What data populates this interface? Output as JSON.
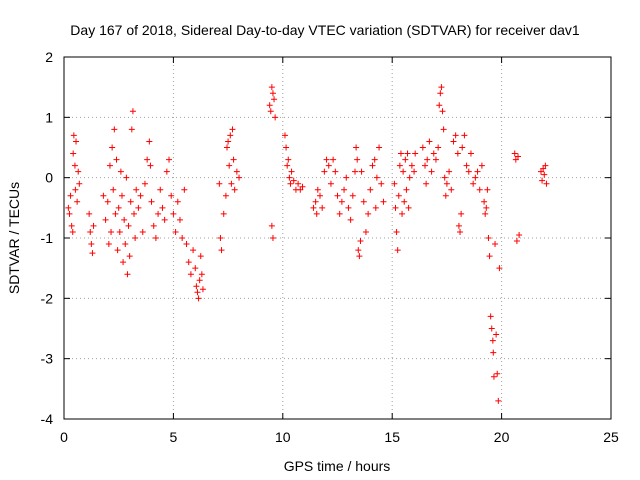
{
  "chart_data": {
    "type": "scatter",
    "title": "Day 167 of 2018, Sidereal Day-to-day VTEC variation (SDTVAR) for receiver dav1",
    "xlabel": "GPS time / hours",
    "ylabel": "SDTVAR / TECUs",
    "xlim": [
      0,
      25
    ],
    "ylim": [
      -4,
      2
    ],
    "xticks": [
      0,
      5,
      10,
      15,
      20,
      25
    ],
    "yticks": [
      -4,
      -3,
      -2,
      -1,
      0,
      1,
      2
    ],
    "grid": true,
    "marker": "plus",
    "color": "#ff0000",
    "series": [
      {
        "name": "SDTVAR",
        "points": [
          [
            0.2,
            -0.5
          ],
          [
            0.25,
            -0.6
          ],
          [
            0.3,
            -0.3
          ],
          [
            0.35,
            -0.8
          ],
          [
            0.4,
            -0.9
          ],
          [
            0.42,
            0.4
          ],
          [
            0.45,
            0.7
          ],
          [
            0.5,
            0.2
          ],
          [
            0.52,
            -0.2
          ],
          [
            0.55,
            0.6
          ],
          [
            0.6,
            -0.4
          ],
          [
            0.65,
            0.1
          ],
          [
            0.7,
            -0.1
          ],
          [
            1.15,
            -0.6
          ],
          [
            1.2,
            -0.9
          ],
          [
            1.25,
            -1.1
          ],
          [
            1.3,
            -1.25
          ],
          [
            1.35,
            -0.8
          ],
          [
            1.8,
            -0.3
          ],
          [
            1.9,
            -0.7
          ],
          [
            2.0,
            -0.4
          ],
          [
            2.05,
            -1.1
          ],
          [
            2.1,
            0.2
          ],
          [
            2.15,
            -0.9
          ],
          [
            2.2,
            0.5
          ],
          [
            2.25,
            -0.2
          ],
          [
            2.3,
            0.8
          ],
          [
            2.35,
            -0.6
          ],
          [
            2.4,
            0.3
          ],
          [
            2.45,
            -1.2
          ],
          [
            2.5,
            -0.5
          ],
          [
            2.55,
            -0.9
          ],
          [
            2.6,
            0.1
          ],
          [
            2.65,
            -0.3
          ],
          [
            2.7,
            -1.4
          ],
          [
            2.75,
            -0.7
          ],
          [
            2.8,
            -1.1
          ],
          [
            2.85,
            0.0
          ],
          [
            2.9,
            -1.6
          ],
          [
            2.95,
            -0.8
          ],
          [
            3.0,
            -1.3
          ],
          [
            3.05,
            -0.4
          ],
          [
            3.1,
            0.8
          ],
          [
            3.15,
            1.1
          ],
          [
            3.2,
            -0.6
          ],
          [
            3.25,
            -1.0
          ],
          [
            3.3,
            -0.2
          ],
          [
            3.4,
            -0.5
          ],
          [
            3.5,
            -0.3
          ],
          [
            3.6,
            -0.9
          ],
          [
            3.7,
            -0.1
          ],
          [
            3.8,
            0.3
          ],
          [
            3.9,
            0.6
          ],
          [
            3.95,
            0.2
          ],
          [
            4.0,
            -0.4
          ],
          [
            4.1,
            -0.8
          ],
          [
            4.2,
            -1.0
          ],
          [
            4.3,
            -0.6
          ],
          [
            4.4,
            -0.2
          ],
          [
            4.5,
            -0.5
          ],
          [
            4.6,
            -0.7
          ],
          [
            4.7,
            0.1
          ],
          [
            4.8,
            0.3
          ],
          [
            4.9,
            -0.3
          ],
          [
            5.0,
            -0.6
          ],
          [
            5.1,
            -0.9
          ],
          [
            5.2,
            -0.4
          ],
          [
            5.3,
            -0.7
          ],
          [
            5.4,
            -1.0
          ],
          [
            5.5,
            -0.2
          ],
          [
            5.6,
            -1.1
          ],
          [
            5.7,
            -1.4
          ],
          [
            5.8,
            -1.6
          ],
          [
            5.9,
            -1.2
          ],
          [
            6.0,
            -1.5
          ],
          [
            6.05,
            -1.8
          ],
          [
            6.1,
            -1.9
          ],
          [
            6.15,
            -2.0
          ],
          [
            6.2,
            -1.7
          ],
          [
            6.25,
            -1.3
          ],
          [
            6.3,
            -1.6
          ],
          [
            6.35,
            -1.85
          ],
          [
            7.1,
            -0.1
          ],
          [
            7.15,
            -1.0
          ],
          [
            7.2,
            -1.2
          ],
          [
            7.3,
            -0.6
          ],
          [
            7.4,
            -0.3
          ],
          [
            7.45,
            0.5
          ],
          [
            7.5,
            0.6
          ],
          [
            7.55,
            0.2
          ],
          [
            7.6,
            0.7
          ],
          [
            7.65,
            -0.1
          ],
          [
            7.7,
            0.8
          ],
          [
            7.75,
            0.3
          ],
          [
            7.8,
            -0.2
          ],
          [
            7.9,
            0.1
          ],
          [
            8.0,
            0.0
          ],
          [
            9.4,
            1.2
          ],
          [
            9.45,
            1.1
          ],
          [
            9.5,
            1.5
          ],
          [
            9.55,
            1.4
          ],
          [
            9.6,
            1.3
          ],
          [
            9.65,
            1.0
          ],
          [
            9.5,
            -0.8
          ],
          [
            9.55,
            -1.0
          ],
          [
            10.1,
            0.7
          ],
          [
            10.15,
            0.5
          ],
          [
            10.2,
            0.2
          ],
          [
            10.25,
            0.3
          ],
          [
            10.3,
            0.0
          ],
          [
            10.35,
            -0.1
          ],
          [
            10.4,
            0.1
          ],
          [
            10.5,
            -0.05
          ],
          [
            10.6,
            -0.2
          ],
          [
            10.7,
            -0.1
          ],
          [
            10.8,
            -0.2
          ],
          [
            10.9,
            -0.15
          ],
          [
            11.4,
            -0.5
          ],
          [
            11.5,
            -0.4
          ],
          [
            11.55,
            -0.6
          ],
          [
            11.6,
            -0.2
          ],
          [
            11.7,
            -0.3
          ],
          [
            11.8,
            -0.5
          ],
          [
            11.9,
            0.1
          ],
          [
            12.0,
            0.3
          ],
          [
            12.1,
            0.2
          ],
          [
            12.2,
            -0.1
          ],
          [
            12.3,
            0.3
          ],
          [
            12.4,
            0.1
          ],
          [
            12.5,
            -0.3
          ],
          [
            12.6,
            -0.6
          ],
          [
            12.7,
            -0.4
          ],
          [
            12.8,
            -0.2
          ],
          [
            12.9,
            0.0
          ],
          [
            13.0,
            -0.5
          ],
          [
            13.1,
            -0.7
          ],
          [
            13.2,
            -0.3
          ],
          [
            13.3,
            0.1
          ],
          [
            13.35,
            0.5
          ],
          [
            13.4,
            0.3
          ],
          [
            13.45,
            -1.2
          ],
          [
            13.5,
            -1.3
          ],
          [
            13.55,
            -1.05
          ],
          [
            13.6,
            0.1
          ],
          [
            13.7,
            -0.4
          ],
          [
            13.8,
            -0.9
          ],
          [
            13.9,
            -0.6
          ],
          [
            14.0,
            -0.2
          ],
          [
            14.1,
            0.2
          ],
          [
            14.2,
            0.3
          ],
          [
            14.25,
            -0.5
          ],
          [
            14.3,
            0.0
          ],
          [
            14.4,
            0.5
          ],
          [
            14.5,
            -0.1
          ],
          [
            14.6,
            -0.4
          ],
          [
            15.1,
            -0.1
          ],
          [
            15.15,
            -0.5
          ],
          [
            15.2,
            -0.9
          ],
          [
            15.25,
            -1.2
          ],
          [
            15.3,
            -0.3
          ],
          [
            15.35,
            0.2
          ],
          [
            15.4,
            0.4
          ],
          [
            15.45,
            -0.6
          ],
          [
            15.5,
            0.1
          ],
          [
            15.55,
            -0.4
          ],
          [
            15.6,
            0.3
          ],
          [
            15.65,
            -0.2
          ],
          [
            15.7,
            0.4
          ],
          [
            15.75,
            -0.5
          ],
          [
            15.8,
            0.0
          ],
          [
            15.9,
            0.2
          ],
          [
            16.0,
            0.1
          ],
          [
            16.05,
            0.4
          ],
          [
            16.4,
            0.5
          ],
          [
            16.5,
            0.2
          ],
          [
            16.55,
            -0.1
          ],
          [
            16.6,
            0.3
          ],
          [
            16.7,
            0.6
          ],
          [
            16.8,
            0.1
          ],
          [
            16.9,
            0.4
          ],
          [
            17.0,
            0.3
          ],
          [
            17.1,
            0.5
          ],
          [
            17.15,
            1.2
          ],
          [
            17.2,
            1.4
          ],
          [
            17.25,
            1.5
          ],
          [
            17.3,
            1.1
          ],
          [
            17.35,
            0.8
          ],
          [
            17.4,
            0.0
          ],
          [
            17.45,
            -0.3
          ],
          [
            17.5,
            -0.1
          ],
          [
            17.6,
            0.1
          ],
          [
            17.7,
            -0.2
          ],
          [
            17.8,
            0.6
          ],
          [
            17.9,
            0.7
          ],
          [
            18.0,
            0.4
          ],
          [
            18.05,
            -0.8
          ],
          [
            18.1,
            -0.9
          ],
          [
            18.15,
            -0.6
          ],
          [
            18.2,
            0.5
          ],
          [
            18.3,
            0.7
          ],
          [
            18.4,
            0.2
          ],
          [
            18.5,
            0.1
          ],
          [
            18.6,
            0.4
          ],
          [
            18.7,
            -0.1
          ],
          [
            18.8,
            0.0
          ],
          [
            18.9,
            0.1
          ],
          [
            19.0,
            -0.2
          ],
          [
            19.1,
            0.2
          ],
          [
            19.2,
            -0.4
          ],
          [
            19.25,
            -0.6
          ],
          [
            19.3,
            -0.5
          ],
          [
            19.35,
            -0.2
          ],
          [
            19.4,
            -1.0
          ],
          [
            19.45,
            -1.3
          ],
          [
            19.5,
            -2.3
          ],
          [
            19.55,
            -2.5
          ],
          [
            19.6,
            -2.7
          ],
          [
            19.62,
            -2.9
          ],
          [
            19.65,
            -3.3
          ],
          [
            19.7,
            -1.1
          ],
          [
            19.75,
            -2.6
          ],
          [
            19.8,
            -3.25
          ],
          [
            19.85,
            -3.7
          ],
          [
            19.9,
            -1.5
          ],
          [
            20.6,
            0.4
          ],
          [
            20.65,
            0.3
          ],
          [
            20.7,
            -1.05
          ],
          [
            20.75,
            0.35
          ],
          [
            20.8,
            -0.95
          ],
          [
            21.8,
            0.1
          ],
          [
            21.85,
            -0.05
          ],
          [
            21.9,
            0.15
          ],
          [
            21.95,
            0.05
          ],
          [
            22.0,
            0.2
          ],
          [
            22.05,
            -0.1
          ]
        ]
      }
    ]
  }
}
